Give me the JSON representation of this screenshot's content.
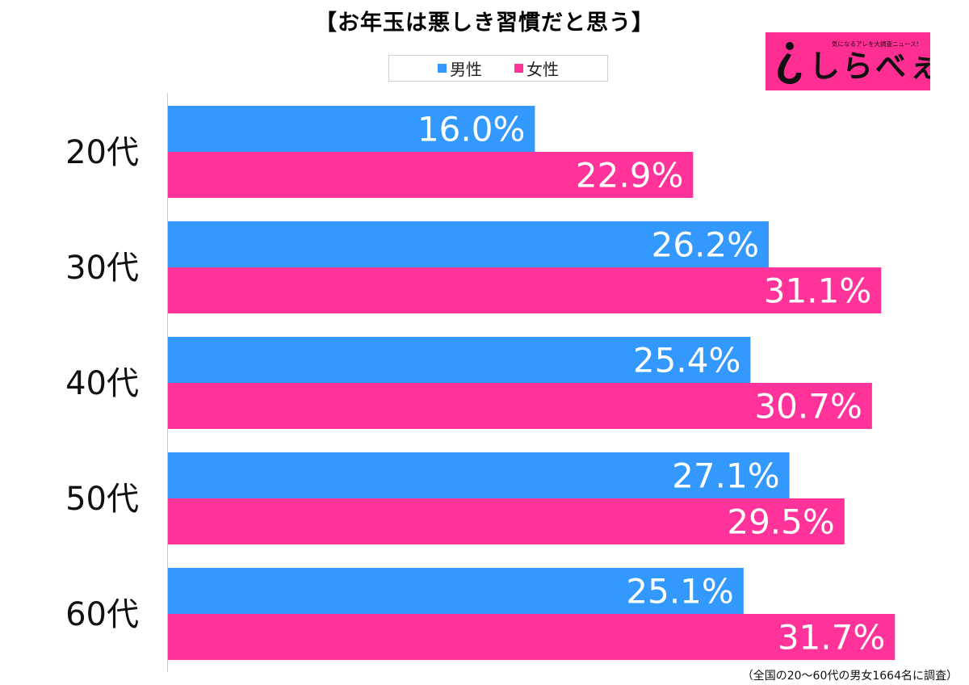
{
  "logo": {
    "tagline": "気になるアレを大調査ニュース!",
    "wordmark": "しらべぇ"
  },
  "footnote": "（全国の20〜60代の男女1664名に調査）",
  "colors": {
    "male": "#3399ff",
    "female": "#ff3399",
    "brand": "#ff2e93"
  },
  "chart_data": {
    "type": "bar",
    "orientation": "horizontal",
    "title": "【お年玉は悪しき習慣だと思う】",
    "categories": [
      "20代",
      "30代",
      "40代",
      "50代",
      "60代"
    ],
    "series": [
      {
        "name": "男性",
        "values": [
          16.0,
          26.2,
          25.4,
          27.1,
          25.1
        ]
      },
      {
        "name": "女性",
        "values": [
          22.9,
          31.1,
          30.7,
          29.5,
          31.7
        ]
      }
    ],
    "value_format": "%",
    "xlim": [
      0,
      35
    ],
    "grid": false,
    "legend_position": "top-center"
  }
}
